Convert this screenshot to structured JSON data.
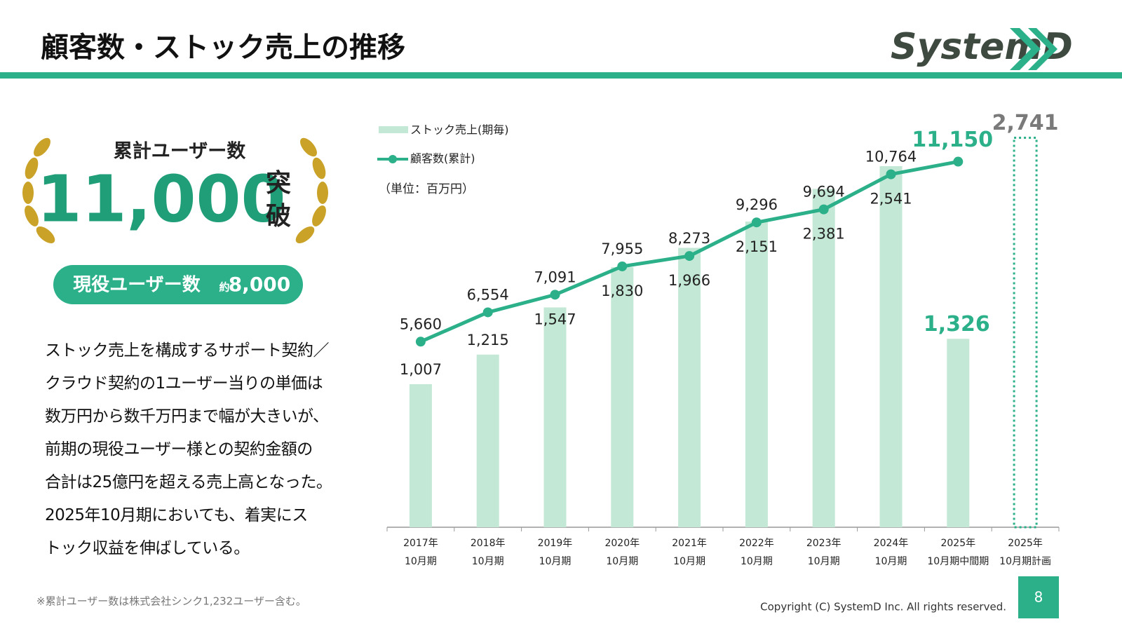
{
  "header": {
    "title": "顧客数・ストック売上の推移",
    "logo": "SystemD"
  },
  "badge": {
    "label": "累計ユーザー数",
    "number": "11,000",
    "suffix1": "突",
    "suffix2": "破"
  },
  "active": {
    "label": "現役ユーザー数",
    "prefix": "約",
    "number": "8,000"
  },
  "paragraph": [
    "ストック売上を構成するサポート契約／",
    "クラウド契約の1ユーザー当りの単価は",
    "数万円から数千万円まで幅が大きいが、",
    "前期の現役ユーザー様との契約金額の",
    "合計は25億円を超える売上高となった。",
    "2025年10月期においても、着実にス",
    "トック収益を伸ばしている。"
  ],
  "footnote": "※累計ユーザー数は株式会社シンク1,232ユーザー含む。",
  "copyright": "Copyright (C) SystemD Inc. All rights reserved.",
  "page_number": "8",
  "chart_data": {
    "type": "bar_line",
    "unit_note": "（単位：百万円）",
    "categories": [
      "2017年\n10月期",
      "2018年\n10月期",
      "2019年\n10月期",
      "2020年\n10月期",
      "2021年\n10月期",
      "2022年\n10月期",
      "2023年\n10月期",
      "2024年\n10月期",
      "2025年\n10月期中間期",
      "2025年\n10月期計画"
    ],
    "ylim": [
      0,
      3000
    ],
    "y2lim": [
      0,
      13000
    ],
    "series": [
      {
        "name": "ストック売上(期毎)",
        "type": "bar",
        "color": "#c3e8d5",
        "values": [
          1007,
          1215,
          1547,
          1830,
          1966,
          2151,
          2381,
          2541,
          1326,
          2741
        ],
        "value_labels": [
          "1,007",
          "1,215",
          "1,547",
          "1,830",
          "1,966",
          "2,151",
          "2,381",
          "2,541",
          "1,326",
          "2,741"
        ]
      },
      {
        "name": "顧客数(累計)",
        "type": "line",
        "axis": "y2",
        "color": "#2bb08a",
        "values": [
          5660,
          6554,
          7091,
          7955,
          8273,
          9296,
          9694,
          10764,
          11150,
          null
        ],
        "value_labels": [
          "5,660",
          "6,554",
          "7,091",
          "7,955",
          "8,273",
          "9,296",
          "9,694",
          "10,764",
          "11,150",
          null
        ]
      }
    ]
  }
}
